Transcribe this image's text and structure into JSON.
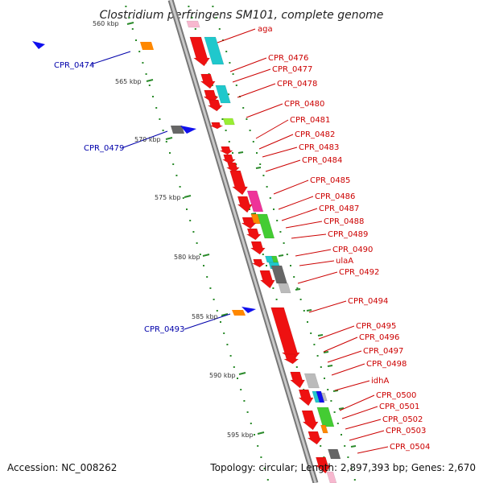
{
  "title": "Clostridium perfringens SM101, complete genome",
  "footer": {
    "accession": "Accession: NC_008262",
    "topology": "Topology: circular; Length: 2,897,393 bp; Genes: 2,670"
  },
  "scale_labels": [
    "560 kbp",
    "565 kbp",
    "570 kbp",
    "575 kbp",
    "580 kbp",
    "585 kbp",
    "590 kbp",
    "595 kbp"
  ],
  "gene_labels_right": [
    "aga",
    "CPR_0476",
    "CPR_0477",
    "CPR_0478",
    "CPR_0480",
    "CPR_0481",
    "CPR_0482",
    "CPR_0483",
    "CPR_0484",
    "CPR_0485",
    "CPR_0486",
    "CPR_0487",
    "CPR_0488",
    "CPR_0489",
    "CPR_0490",
    "ulaA",
    "CPR_0492",
    "CPR_0494",
    "CPR_0495",
    "CPR_0496",
    "CPR_0497",
    "CPR_0498",
    "idhA",
    "CPR_0500",
    "CPR_0501",
    "CPR_0502",
    "CPR_0503",
    "CPR_0504"
  ],
  "gene_labels_left": [
    "CPR_0474",
    "CPR_0479",
    "CPR_0493"
  ],
  "colors": {
    "forward_gene": "#ee1111",
    "cyan_block": "#20c8cc",
    "green_block": "#44cc33",
    "magenta_block": "#ee3399",
    "orange_block": "#ff8800",
    "blue_arrow": "#1010ee",
    "gray_block": "#666666",
    "light_gray_block": "#bbbbbb",
    "backbone": "#8a8a8a",
    "tick_green": "#2a8a2a",
    "label_red": "#cc0000",
    "label_blue": "#0000aa"
  }
}
